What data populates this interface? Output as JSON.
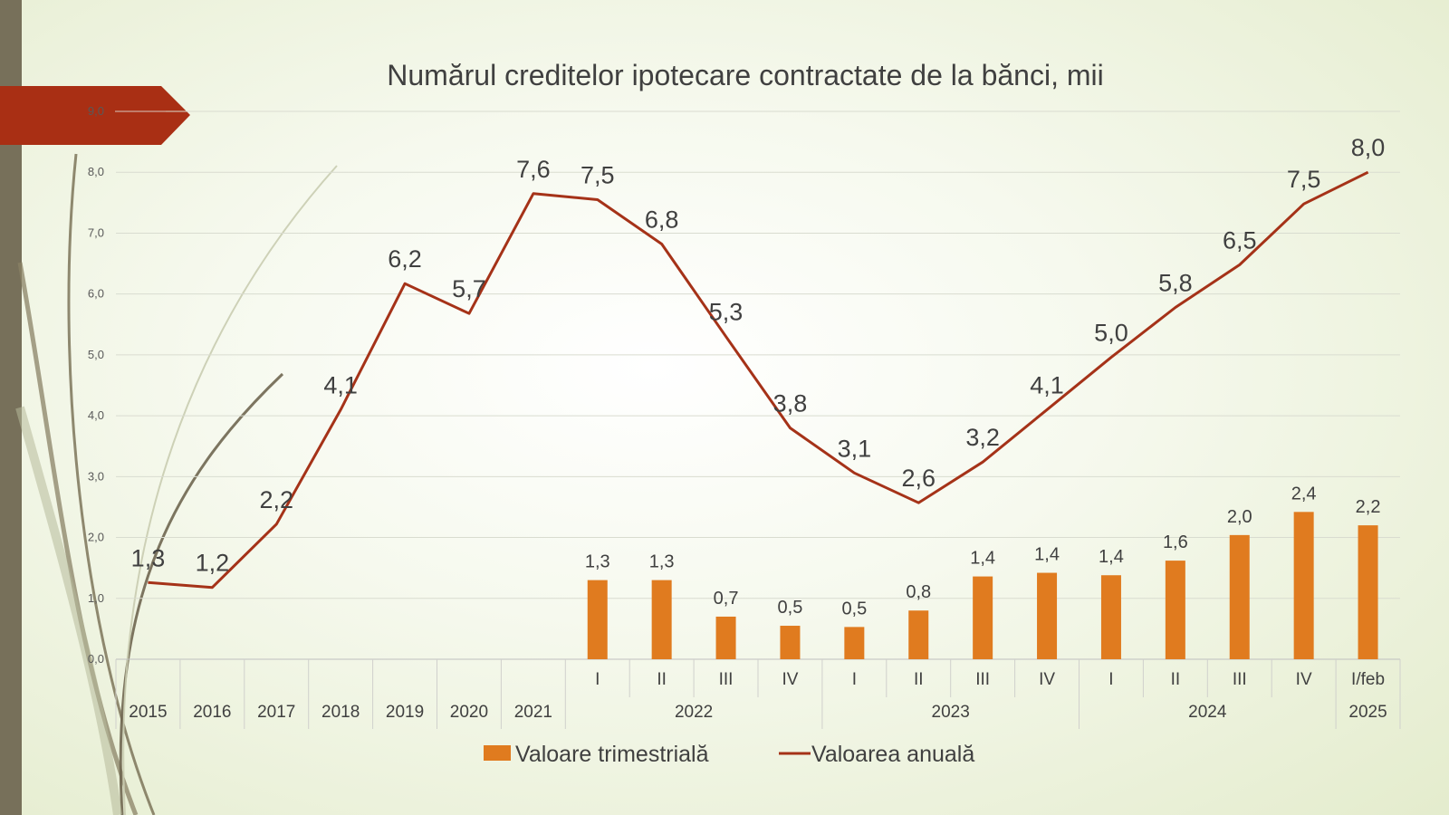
{
  "colors": {
    "bar": "#e07b1f",
    "line": "#a53218",
    "accent_arrow": "#a92f14",
    "left_band": "#77705a"
  },
  "chart_data": {
    "type": "bar+line",
    "title": "Numărul creditelor ipotecare contractate de la bănci, mii",
    "ylim": [
      0,
      9
    ],
    "y_ticks": [
      "0,0",
      "1,0",
      "2,0",
      "3,0",
      "4,0",
      "5,0",
      "6,0",
      "7,0",
      "8,0",
      "9,0"
    ],
    "grid": true,
    "legend_position": "bottom",
    "categories": [
      {
        "sub": "",
        "group": "2015"
      },
      {
        "sub": "",
        "group": "2016"
      },
      {
        "sub": "",
        "group": "2017"
      },
      {
        "sub": "",
        "group": "2018"
      },
      {
        "sub": "",
        "group": "2019"
      },
      {
        "sub": "",
        "group": "2020"
      },
      {
        "sub": "",
        "group": "2021"
      },
      {
        "sub": "I",
        "group": "2022"
      },
      {
        "sub": "II",
        "group": "2022"
      },
      {
        "sub": "III",
        "group": "2022"
      },
      {
        "sub": "IV",
        "group": "2022"
      },
      {
        "sub": "I",
        "group": "2023"
      },
      {
        "sub": "II",
        "group": "2023"
      },
      {
        "sub": "III",
        "group": "2023"
      },
      {
        "sub": "IV",
        "group": "2023"
      },
      {
        "sub": "I",
        "group": "2024"
      },
      {
        "sub": "II",
        "group": "2024"
      },
      {
        "sub": "III",
        "group": "2024"
      },
      {
        "sub": "IV",
        "group": "2024"
      },
      {
        "sub": "I/feb",
        "group": "2025"
      }
    ],
    "series": [
      {
        "name": "Valoare trimestrială",
        "type": "bar",
        "values": [
          null,
          null,
          null,
          null,
          null,
          null,
          null,
          1.3,
          1.3,
          0.7,
          0.55,
          0.53,
          0.8,
          1.36,
          1.42,
          1.38,
          1.62,
          2.04,
          2.42,
          2.2
        ],
        "labels": [
          "",
          "",
          "",
          "",
          "",
          "",
          "",
          "1,3",
          "1,3",
          "0,7",
          "0,5",
          "0,5",
          "0,8",
          "1,4",
          "1,4",
          "1,4",
          "1,6",
          "2,0",
          "2,4",
          "2,2"
        ]
      },
      {
        "name": "Valoarea anuală",
        "type": "line",
        "values": [
          1.26,
          1.18,
          2.22,
          4.1,
          6.17,
          5.68,
          7.65,
          7.55,
          6.82,
          5.3,
          3.8,
          3.06,
          2.57,
          3.24,
          4.1,
          4.96,
          5.78,
          6.48,
          7.48,
          8.0
        ],
        "labels": [
          "1,3",
          "1,2",
          "2,2",
          "4,1",
          "6,2",
          "5,7",
          "7,6",
          "7,5",
          "6,8",
          "5,3",
          "3,8",
          "3,1",
          "2,6",
          "3,2",
          "4,1",
          "5,0",
          "5,8",
          "6,5",
          "7,5",
          "8,0"
        ]
      }
    ]
  }
}
